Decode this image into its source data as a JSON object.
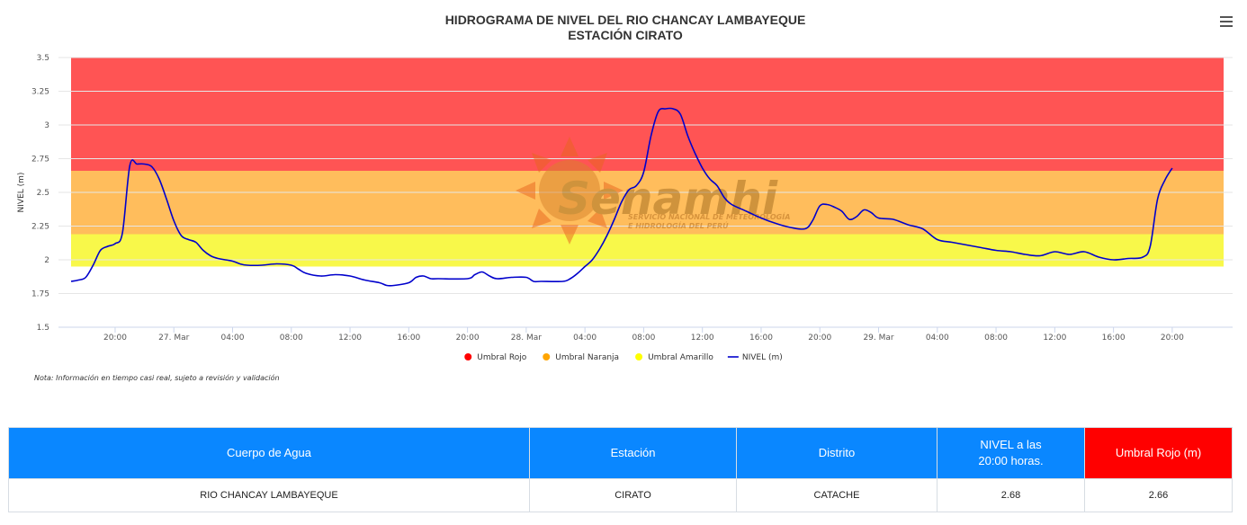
{
  "header": {
    "title_line1": "HIDROGRAMA DE NIVEL DEL RIO CHANCAY LAMBAYEQUE",
    "title_line2": "ESTACIÓN CIRATO",
    "menu_icon": "hamburger-menu-icon"
  },
  "watermark": {
    "brand": "Senamhi",
    "subtitle_line1": "SERVICIO NACIONAL DE METEOROLOGÍA",
    "subtitle_line2": "E HIDROLOGÍA DEL PERÚ"
  },
  "note": "Nota: Información en tiempo casi real, sujeto a revisión y validación",
  "chart_data": {
    "type": "line",
    "title": "HIDROGRAMA DE NIVEL DEL RIO CHANCAY LAMBAYEQUE",
    "subtitle": "ESTACIÓN CIRATO",
    "ylabel": "NIVEL (m)",
    "xlabel": "",
    "ylim": [
      1.5,
      3.5
    ],
    "yticks": [
      "1.5",
      "1.75",
      "2",
      "2.25",
      "2.5",
      "2.75",
      "3",
      "3.25",
      "3.5"
    ],
    "xlim": [
      "2024-03-26 17:00",
      "2024-03-29 23:30"
    ],
    "xticks": [
      {
        "label": "20:00",
        "at": "2024-03-26 20:00"
      },
      {
        "label": "27. Mar",
        "at": "2024-03-27 00:00"
      },
      {
        "label": "04:00",
        "at": "2024-03-27 04:00"
      },
      {
        "label": "08:00",
        "at": "2024-03-27 08:00"
      },
      {
        "label": "12:00",
        "at": "2024-03-27 12:00"
      },
      {
        "label": "16:00",
        "at": "2024-03-27 16:00"
      },
      {
        "label": "20:00",
        "at": "2024-03-27 20:00"
      },
      {
        "label": "28. Mar",
        "at": "2024-03-28 00:00"
      },
      {
        "label": "04:00",
        "at": "2024-03-28 04:00"
      },
      {
        "label": "08:00",
        "at": "2024-03-28 08:00"
      },
      {
        "label": "12:00",
        "at": "2024-03-28 12:00"
      },
      {
        "label": "16:00",
        "at": "2024-03-28 16:00"
      },
      {
        "label": "20:00",
        "at": "2024-03-28 20:00"
      },
      {
        "label": "29. Mar",
        "at": "2024-03-29 00:00"
      },
      {
        "label": "04:00",
        "at": "2024-03-29 04:00"
      },
      {
        "label": "08:00",
        "at": "2024-03-29 08:00"
      },
      {
        "label": "12:00",
        "at": "2024-03-29 12:00"
      },
      {
        "label": "16:00",
        "at": "2024-03-29 16:00"
      },
      {
        "label": "20:00",
        "at": "2024-03-29 20:00"
      }
    ],
    "grid": true,
    "legend_position": "bottom-center",
    "bands": [
      {
        "name": "Umbral Rojo",
        "from": 2.66,
        "to": 3.5,
        "color": "#ff5454"
      },
      {
        "name": "Umbral Naranja",
        "from": 2.19,
        "to": 2.66,
        "color": "#ffbd5c"
      },
      {
        "name": "Umbral Amarillo",
        "from": 1.95,
        "to": 2.19,
        "color": "#f8f84a"
      }
    ],
    "legend": [
      {
        "name": "Umbral Rojo",
        "color": "#ff0000",
        "symbol": "circle"
      },
      {
        "name": "Umbral Naranja",
        "color": "#ffa500",
        "symbol": "circle"
      },
      {
        "name": "Umbral Amarillo",
        "color": "#ffff00",
        "symbol": "circle"
      },
      {
        "name": "NIVEL (m)",
        "color": "#0000cc",
        "symbol": "line"
      }
    ],
    "series": [
      {
        "name": "NIVEL (m)",
        "color": "#0000cc",
        "points": [
          [
            "2024-03-26 17:00",
            1.84
          ],
          [
            "2024-03-26 17:30",
            1.85
          ],
          [
            "2024-03-26 18:00",
            1.87
          ],
          [
            "2024-03-26 18:30",
            1.96
          ],
          [
            "2024-03-26 19:00",
            2.07
          ],
          [
            "2024-03-26 19:30",
            2.1
          ],
          [
            "2024-03-26 20:00",
            2.12
          ],
          [
            "2024-03-26 20:30",
            2.2
          ],
          [
            "2024-03-26 21:00",
            2.7
          ],
          [
            "2024-03-26 21:30",
            2.71
          ],
          [
            "2024-03-26 22:00",
            2.71
          ],
          [
            "2024-03-26 22:30",
            2.69
          ],
          [
            "2024-03-26 23:00",
            2.6
          ],
          [
            "2024-03-26 23:30",
            2.45
          ],
          [
            "2024-03-27 00:00",
            2.29
          ],
          [
            "2024-03-27 00:30",
            2.18
          ],
          [
            "2024-03-27 01:00",
            2.15
          ],
          [
            "2024-03-27 01:30",
            2.13
          ],
          [
            "2024-03-27 02:00",
            2.07
          ],
          [
            "2024-03-27 02:30",
            2.03
          ],
          [
            "2024-03-27 03:00",
            2.01
          ],
          [
            "2024-03-27 04:00",
            1.99
          ],
          [
            "2024-03-27 04:30",
            1.97
          ],
          [
            "2024-03-27 05:00",
            1.96
          ],
          [
            "2024-03-27 06:00",
            1.96
          ],
          [
            "2024-03-27 07:00",
            1.97
          ],
          [
            "2024-03-27 08:00",
            1.96
          ],
          [
            "2024-03-27 08:30",
            1.93
          ],
          [
            "2024-03-27 09:00",
            1.9
          ],
          [
            "2024-03-27 10:00",
            1.88
          ],
          [
            "2024-03-27 11:00",
            1.89
          ],
          [
            "2024-03-27 12:00",
            1.88
          ],
          [
            "2024-03-27 13:00",
            1.85
          ],
          [
            "2024-03-27 14:00",
            1.83
          ],
          [
            "2024-03-27 14:30",
            1.81
          ],
          [
            "2024-03-27 15:00",
            1.81
          ],
          [
            "2024-03-27 16:00",
            1.83
          ],
          [
            "2024-03-27 16:30",
            1.87
          ],
          [
            "2024-03-27 17:00",
            1.88
          ],
          [
            "2024-03-27 17:30",
            1.86
          ],
          [
            "2024-03-27 18:00",
            1.86
          ],
          [
            "2024-03-27 20:00",
            1.86
          ],
          [
            "2024-03-27 20:30",
            1.89
          ],
          [
            "2024-03-27 21:00",
            1.91
          ],
          [
            "2024-03-27 21:30",
            1.88
          ],
          [
            "2024-03-27 22:00",
            1.86
          ],
          [
            "2024-03-27 23:00",
            1.87
          ],
          [
            "2024-03-28 00:00",
            1.87
          ],
          [
            "2024-03-28 00:30",
            1.84
          ],
          [
            "2024-03-28 01:00",
            1.84
          ],
          [
            "2024-03-28 02:30",
            1.84
          ],
          [
            "2024-03-28 03:00",
            1.86
          ],
          [
            "2024-03-28 03:30",
            1.9
          ],
          [
            "2024-03-28 04:00",
            1.95
          ],
          [
            "2024-03-28 04:30",
            2.0
          ],
          [
            "2024-03-28 05:00",
            2.08
          ],
          [
            "2024-03-28 05:30",
            2.18
          ],
          [
            "2024-03-28 06:00",
            2.3
          ],
          [
            "2024-03-28 06:30",
            2.43
          ],
          [
            "2024-03-28 07:00",
            2.52
          ],
          [
            "2024-03-28 07:30",
            2.55
          ],
          [
            "2024-03-28 08:00",
            2.65
          ],
          [
            "2024-03-28 08:30",
            2.92
          ],
          [
            "2024-03-28 09:00",
            3.1
          ],
          [
            "2024-03-28 09:30",
            3.12
          ],
          [
            "2024-03-28 10:00",
            3.12
          ],
          [
            "2024-03-28 10:30",
            3.08
          ],
          [
            "2024-03-28 11:00",
            2.92
          ],
          [
            "2024-03-28 11:30",
            2.79
          ],
          [
            "2024-03-28 12:00",
            2.68
          ],
          [
            "2024-03-28 12:30",
            2.6
          ],
          [
            "2024-03-28 13:00",
            2.55
          ],
          [
            "2024-03-28 13:30",
            2.46
          ],
          [
            "2024-03-28 14:00",
            2.41
          ],
          [
            "2024-03-28 15:00",
            2.36
          ],
          [
            "2024-03-28 16:00",
            2.31
          ],
          [
            "2024-03-28 17:00",
            2.27
          ],
          [
            "2024-03-28 18:00",
            2.24
          ],
          [
            "2024-03-28 19:00",
            2.23
          ],
          [
            "2024-03-28 19:30",
            2.29
          ],
          [
            "2024-03-28 20:00",
            2.4
          ],
          [
            "2024-03-28 20:30",
            2.41
          ],
          [
            "2024-03-28 21:00",
            2.39
          ],
          [
            "2024-03-28 21:30",
            2.36
          ],
          [
            "2024-03-28 22:00",
            2.3
          ],
          [
            "2024-03-28 22:30",
            2.32
          ],
          [
            "2024-03-28 23:00",
            2.37
          ],
          [
            "2024-03-28 23:30",
            2.35
          ],
          [
            "2024-03-29 00:00",
            2.31
          ],
          [
            "2024-03-29 01:00",
            2.3
          ],
          [
            "2024-03-29 02:00",
            2.26
          ],
          [
            "2024-03-29 03:00",
            2.23
          ],
          [
            "2024-03-29 04:00",
            2.15
          ],
          [
            "2024-03-29 05:00",
            2.13
          ],
          [
            "2024-03-29 06:00",
            2.11
          ],
          [
            "2024-03-29 07:00",
            2.09
          ],
          [
            "2024-03-29 08:00",
            2.07
          ],
          [
            "2024-03-29 09:00",
            2.06
          ],
          [
            "2024-03-29 10:00",
            2.04
          ],
          [
            "2024-03-29 11:00",
            2.03
          ],
          [
            "2024-03-29 12:00",
            2.06
          ],
          [
            "2024-03-29 13:00",
            2.04
          ],
          [
            "2024-03-29 14:00",
            2.06
          ],
          [
            "2024-03-29 15:00",
            2.02
          ],
          [
            "2024-03-29 16:00",
            2.0
          ],
          [
            "2024-03-29 17:00",
            2.01
          ],
          [
            "2024-03-29 18:00",
            2.02
          ],
          [
            "2024-03-29 18:30",
            2.1
          ],
          [
            "2024-03-29 19:00",
            2.45
          ],
          [
            "2024-03-29 19:30",
            2.59
          ],
          [
            "2024-03-29 20:00",
            2.68
          ]
        ]
      }
    ]
  },
  "table": {
    "headers": [
      "Cuerpo de Agua",
      "Estación",
      "Distrito",
      "NIVEL a las 20:00 horas.",
      "Umbral Rojo (m)"
    ],
    "header_nivel_line1": "NIVEL a las",
    "header_nivel_line2": "20:00 horas.",
    "row": [
      "RIO CHANCAY LAMBAYEQUE",
      "CIRATO",
      "CATACHE",
      "2.68",
      "2.66"
    ]
  }
}
